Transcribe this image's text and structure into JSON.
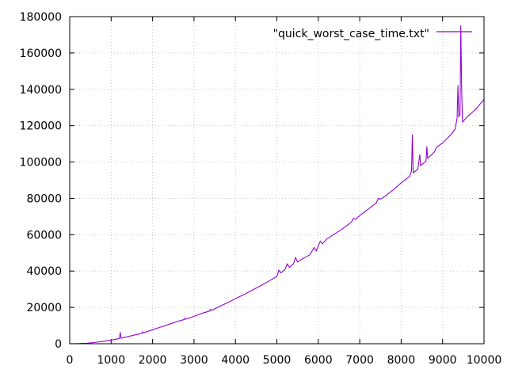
{
  "chart_data": {
    "type": "line",
    "title": "",
    "xlabel": "",
    "ylabel": "",
    "xlim": [
      0,
      10000
    ],
    "ylim": [
      0,
      180000
    ],
    "xticks": [
      0,
      1000,
      2000,
      3000,
      4000,
      5000,
      6000,
      7000,
      8000,
      9000,
      10000
    ],
    "yticks": [
      0,
      20000,
      40000,
      60000,
      80000,
      100000,
      120000,
      140000,
      160000,
      180000
    ],
    "grid": true,
    "legend_position": "top-right",
    "series": [
      {
        "name": "\"quick_worst_case_time.txt\"",
        "color": "#9400d3",
        "points": [
          [
            0,
            0
          ],
          [
            200,
            60
          ],
          [
            400,
            250
          ],
          [
            600,
            700
          ],
          [
            800,
            1300
          ],
          [
            1000,
            2000
          ],
          [
            1200,
            2900
          ],
          [
            1220,
            6200
          ],
          [
            1240,
            3000
          ],
          [
            1400,
            3900
          ],
          [
            1600,
            5000
          ],
          [
            1750,
            5800
          ],
          [
            1760,
            6600
          ],
          [
            1780,
            6000
          ],
          [
            2000,
            7700
          ],
          [
            2200,
            9200
          ],
          [
            2400,
            10700
          ],
          [
            2600,
            12300
          ],
          [
            2750,
            13200
          ],
          [
            2770,
            14000
          ],
          [
            2790,
            13400
          ],
          [
            3000,
            15100
          ],
          [
            3200,
            16800
          ],
          [
            3380,
            18000
          ],
          [
            3400,
            19000
          ],
          [
            3420,
            18300
          ],
          [
            3600,
            20300
          ],
          [
            3800,
            22500
          ],
          [
            4000,
            24800
          ],
          [
            4200,
            27000
          ],
          [
            4400,
            29400
          ],
          [
            4600,
            31800
          ],
          [
            4800,
            34400
          ],
          [
            5000,
            37000
          ],
          [
            5050,
            40500
          ],
          [
            5100,
            39000
          ],
          [
            5200,
            41000
          ],
          [
            5250,
            44000
          ],
          [
            5300,
            42000
          ],
          [
            5400,
            44000
          ],
          [
            5450,
            47500
          ],
          [
            5500,
            45000
          ],
          [
            5600,
            46500
          ],
          [
            5800,
            49000
          ],
          [
            5900,
            53000
          ],
          [
            5950,
            51000
          ],
          [
            6000,
            54000
          ],
          [
            6050,
            56500
          ],
          [
            6100,
            55000
          ],
          [
            6200,
            57500
          ],
          [
            6400,
            60500
          ],
          [
            6600,
            63500
          ],
          [
            6800,
            67000
          ],
          [
            6850,
            69000
          ],
          [
            6900,
            68500
          ],
          [
            7000,
            70500
          ],
          [
            7200,
            74000
          ],
          [
            7400,
            77500
          ],
          [
            7450,
            80000
          ],
          [
            7500,
            79500
          ],
          [
            7600,
            81000
          ],
          [
            7800,
            84500
          ],
          [
            8000,
            88500
          ],
          [
            8200,
            92000
          ],
          [
            8250,
            95000
          ],
          [
            8270,
            114800
          ],
          [
            8290,
            94000
          ],
          [
            8400,
            96000
          ],
          [
            8450,
            104000
          ],
          [
            8470,
            98000
          ],
          [
            8600,
            100500
          ],
          [
            8620,
            108500
          ],
          [
            8640,
            102000
          ],
          [
            8800,
            105500
          ],
          [
            8850,
            108000
          ],
          [
            9000,
            110500
          ],
          [
            9200,
            115000
          ],
          [
            9300,
            118000
          ],
          [
            9350,
            124000
          ],
          [
            9370,
            142000
          ],
          [
            9390,
            125000
          ],
          [
            9420,
            126000
          ],
          [
            9440,
            175000
          ],
          [
            9460,
            140000
          ],
          [
            9480,
            122000
          ],
          [
            9600,
            125000
          ],
          [
            9800,
            129000
          ],
          [
            10000,
            134500
          ]
        ]
      }
    ]
  }
}
